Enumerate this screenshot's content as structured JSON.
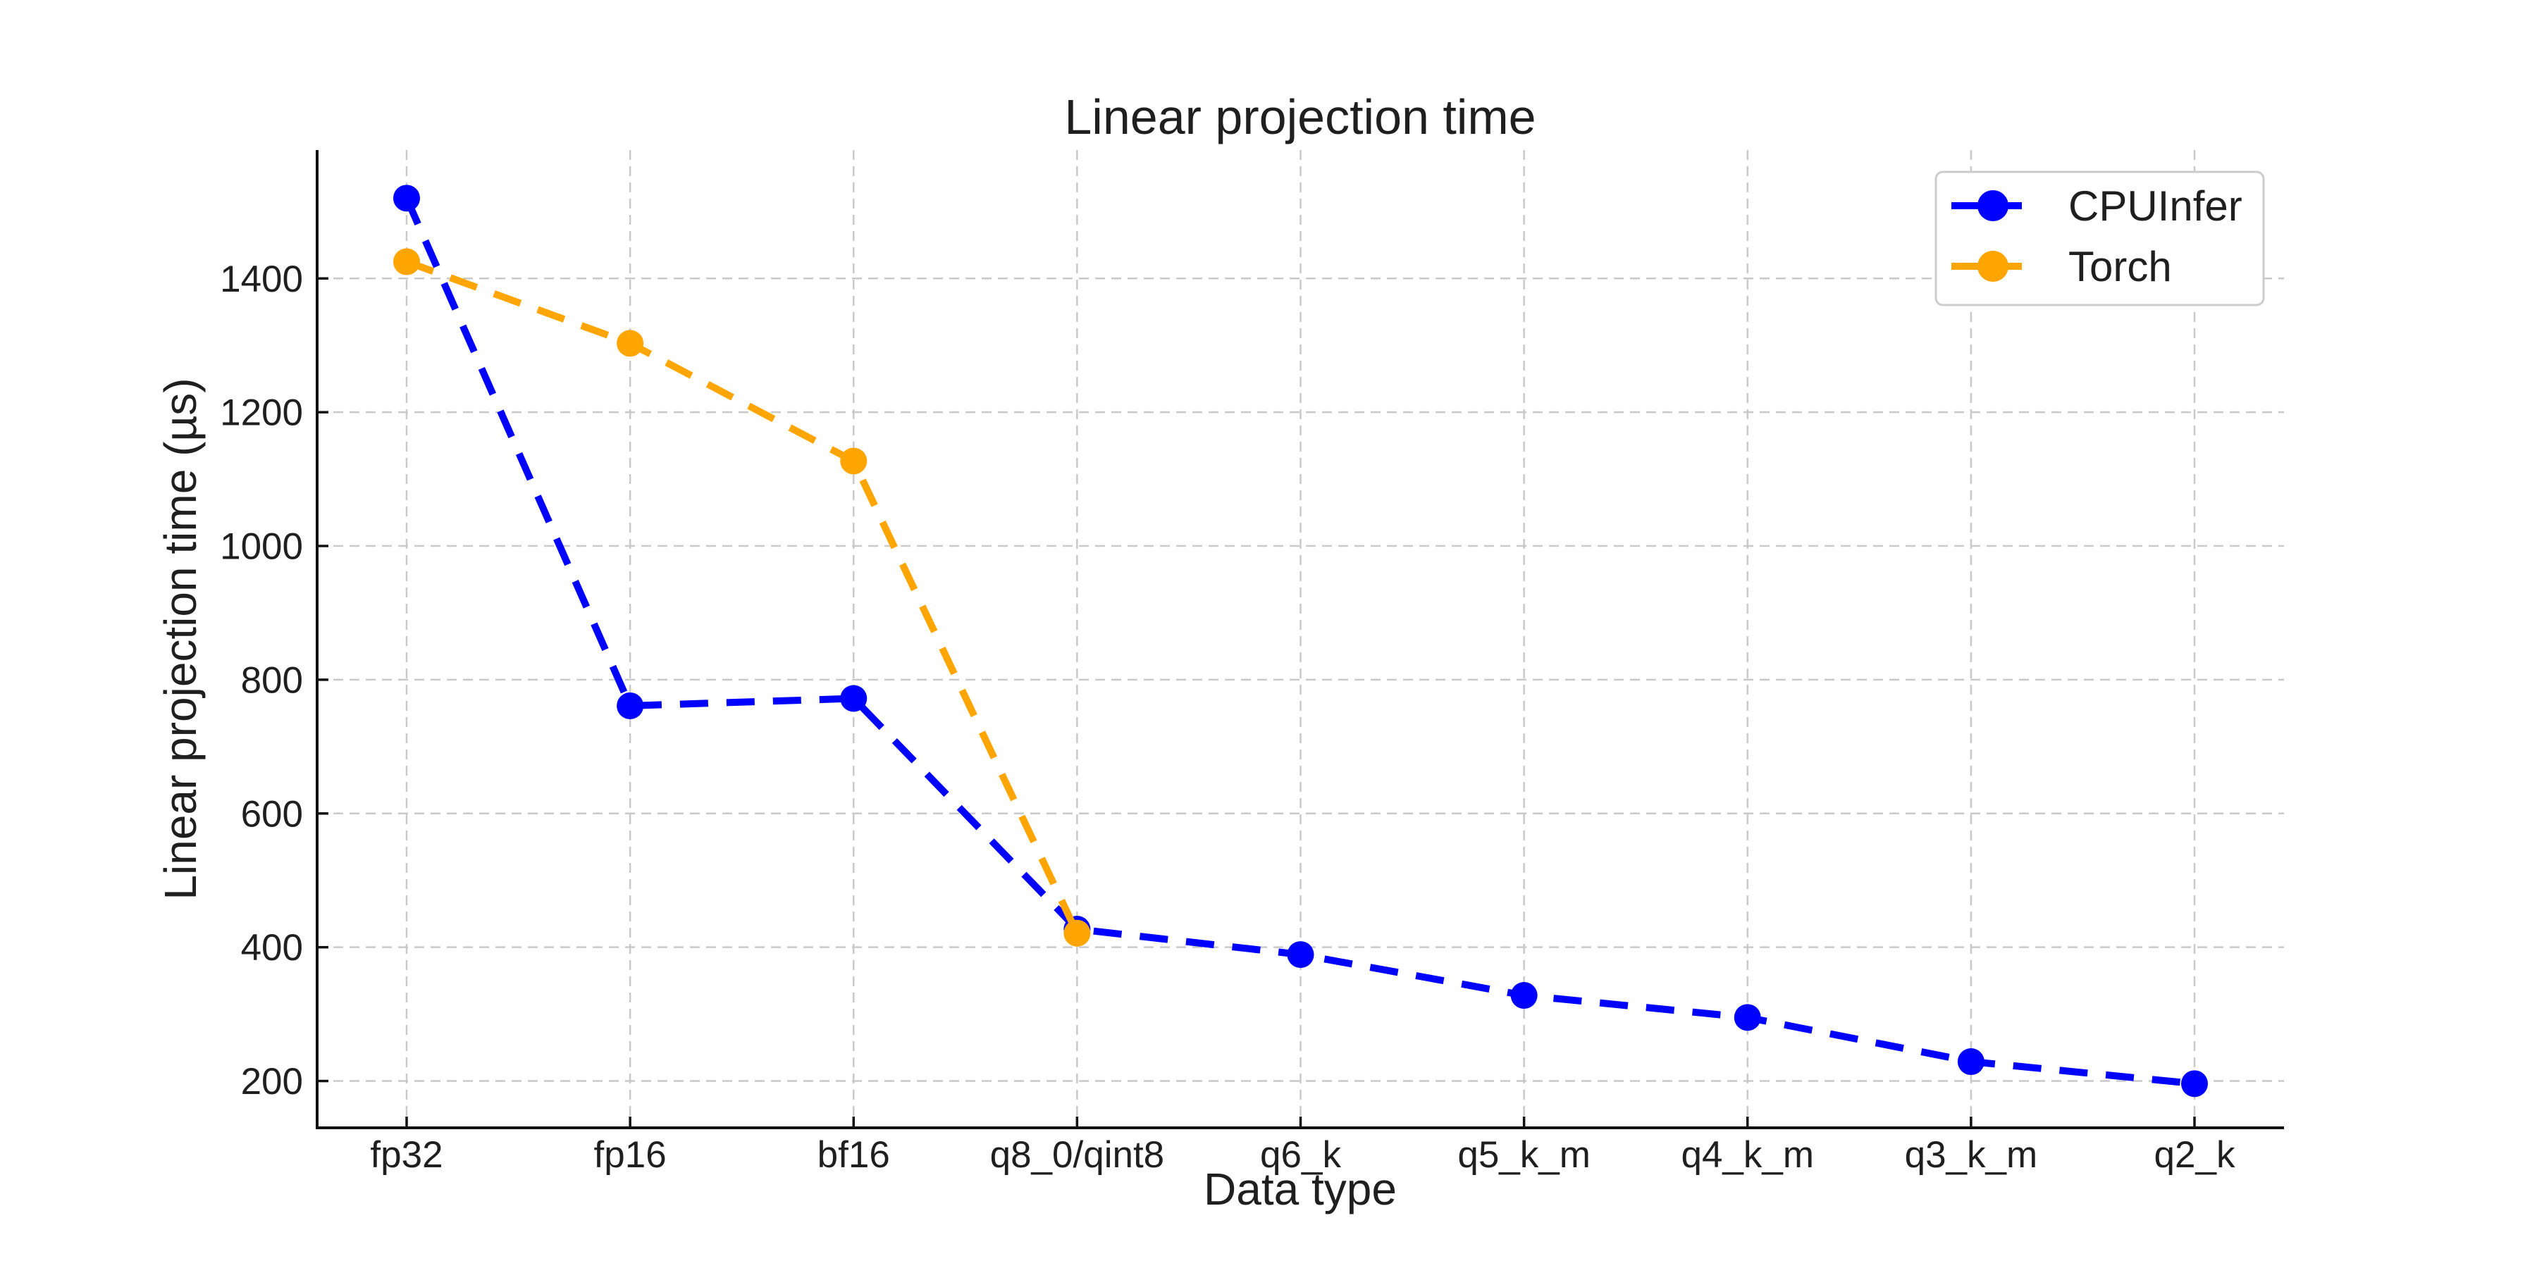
{
  "figure": {
    "title": "Linear projection time",
    "xlabel": "Data type",
    "ylabel": "Linear projection time (µs)"
  },
  "legend": {
    "position": "upper right",
    "items": [
      {
        "label": "CPUInfer",
        "color": "#0000ff"
      },
      {
        "label": "Torch",
        "color": "#ffa500"
      }
    ]
  },
  "chart_data": {
    "type": "line",
    "title": "Linear projection time",
    "xlabel": "Data type",
    "ylabel": "Linear projection time (µs)",
    "categories": [
      "fp32",
      "fp16",
      "bf16",
      "q8_0/qint8",
      "q6_k",
      "q5_k_m",
      "q4_k_m",
      "q3_k_m",
      "q2_k"
    ],
    "series": [
      {
        "name": "CPUInfer",
        "color": "#0000ff",
        "linestyle": "dashed",
        "marker": "circle",
        "values": [
          1520,
          761,
          772,
          427,
          389,
          328,
          295,
          229,
          196
        ]
      },
      {
        "name": "Torch",
        "color": "#ffa500",
        "linestyle": "dashed",
        "marker": "circle",
        "values": [
          1425,
          1303,
          1127,
          421,
          null,
          null,
          null,
          null,
          null
        ]
      }
    ],
    "yticks": [
      200,
      400,
      600,
      800,
      1000,
      1200,
      1400
    ],
    "ylim": [
      130,
      1592
    ],
    "grid": true,
    "grid_style": "dashed",
    "legend_position": "upper right",
    "colors": {
      "background": "#ffffff",
      "grid": "#c9c9c9",
      "axis": "#111111",
      "text": "#1f1f1f",
      "legend_border": "#cccccc"
    }
  }
}
